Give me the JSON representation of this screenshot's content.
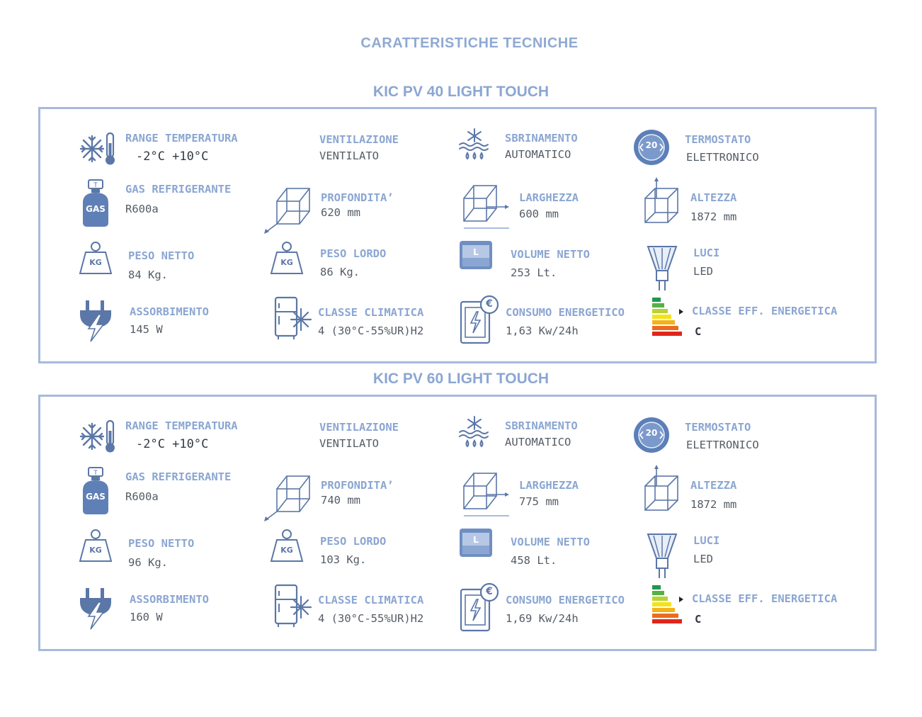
{
  "page_title": "CARATTERISTICHE  TECNICHE",
  "colors": {
    "accent": "#8ba6d2",
    "frame": "#a7b9dc",
    "value_text": "#555c66",
    "icon_blue": "#5b77a8"
  },
  "models": [
    {
      "name": "KIC PV 40 LIGHT TOUCH",
      "specs": {
        "range_temperatura": {
          "label": "RANGE TEMPERATURA",
          "value": "-2°C +10°C",
          "icon": "snowflake-thermometer-icon"
        },
        "ventilazione": {
          "label": "VENTILAZIONE",
          "value": "VENTILATO"
        },
        "sbrinamento": {
          "label": "SBRINAMENTO",
          "value": "AUTOMATICO",
          "icon": "defrost-icon"
        },
        "termostato": {
          "label": "TERMOSTATO",
          "value": "ELETTRONICO",
          "icon": "thermostat-dial-icon",
          "icon_text": "20"
        },
        "gas": {
          "label": "GAS REFRIGERANTE",
          "value": "R600a",
          "icon": "gas-cylinder-icon",
          "icon_text": "GAS"
        },
        "profondita": {
          "label": "PROFONDITA’",
          "value": "620  mm",
          "icon": "cube-depth-icon"
        },
        "larghezza": {
          "label": "LARGHEZZA",
          "value": "600  mm",
          "icon": "cube-width-icon"
        },
        "altezza": {
          "label": "ALTEZZA",
          "value": "1872  mm",
          "icon": "cube-height-icon"
        },
        "peso_netto": {
          "label": "PESO  NETTO",
          "value": "84  Kg.",
          "icon": "weight-icon",
          "icon_text": "KG"
        },
        "peso_lordo": {
          "label": "PESO  LORDO",
          "value": "86  Kg.",
          "icon": "weight-icon",
          "icon_text": "KG"
        },
        "volume": {
          "label": "VOLUME  NETTO",
          "value": "253  Lt.",
          "icon": "volume-icon",
          "icon_text": "L"
        },
        "luci": {
          "label": "LUCI",
          "value": "LED",
          "icon": "led-bulb-icon"
        },
        "assorbimento": {
          "label": "ASSORBIMENTO",
          "value": "145  W",
          "icon": "plug-bolt-icon"
        },
        "classe_climatica": {
          "label": "CLASSE  CLIMATICA",
          "value": "4  (30°C-55%UR)H2",
          "icon": "fridge-snow-icon"
        },
        "consumo": {
          "label": "CONSUMO  ENERGETICO",
          "value": "1,63  Kw/24h",
          "icon": "energy-euro-icon",
          "icon_text": "€"
        },
        "classe_eff": {
          "label": "CLASSE  EFF.  ENERGETICA",
          "value": "C",
          "icon": "energy-label-icon"
        }
      }
    },
    {
      "name": "KIC PV 60 LIGHT TOUCH",
      "specs": {
        "range_temperatura": {
          "label": "RANGE TEMPERATURA",
          "value": "-2°C +10°C",
          "icon": "snowflake-thermometer-icon"
        },
        "ventilazione": {
          "label": "VENTILAZIONE",
          "value": "VENTILATO"
        },
        "sbrinamento": {
          "label": "SBRINAMENTO",
          "value": "AUTOMATICO",
          "icon": "defrost-icon"
        },
        "termostato": {
          "label": "TERMOSTATO",
          "value": "ELETTRONICO",
          "icon": "thermostat-dial-icon",
          "icon_text": "20"
        },
        "gas": {
          "label": "GAS REFRIGERANTE",
          "value": "R600a",
          "icon": "gas-cylinder-icon",
          "icon_text": "GAS"
        },
        "profondita": {
          "label": "PROFONDITA’",
          "value": "740  mm",
          "icon": "cube-depth-icon"
        },
        "larghezza": {
          "label": "LARGHEZZA",
          "value": "775  mm",
          "icon": "cube-width-icon"
        },
        "altezza": {
          "label": "ALTEZZA",
          "value": "1872  mm",
          "icon": "cube-height-icon"
        },
        "peso_netto": {
          "label": "PESO  NETTO",
          "value": "96  Kg.",
          "icon": "weight-icon",
          "icon_text": "KG"
        },
        "peso_lordo": {
          "label": "PESO  LORDO",
          "value": "103  Kg.",
          "icon": "weight-icon",
          "icon_text": "KG"
        },
        "volume": {
          "label": "VOLUME  NETTO",
          "value": "458  Lt.",
          "icon": "volume-icon",
          "icon_text": "L"
        },
        "luci": {
          "label": "LUCI",
          "value": "LED",
          "icon": "led-bulb-icon"
        },
        "assorbimento": {
          "label": "ASSORBIMENTO",
          "value": "160  W",
          "icon": "plug-bolt-icon"
        },
        "classe_climatica": {
          "label": "CLASSE  CLIMATICA",
          "value": "4  (30°C-55%UR)H2",
          "icon": "fridge-snow-icon"
        },
        "consumo": {
          "label": "CONSUMO  ENERGETICO",
          "value": "1,69  Kw/24h",
          "icon": "energy-euro-icon",
          "icon_text": "€"
        },
        "classe_eff": {
          "label": "CLASSE  EFF.  ENERGETICA",
          "value": "C",
          "icon": "energy-label-icon"
        }
      }
    }
  ]
}
